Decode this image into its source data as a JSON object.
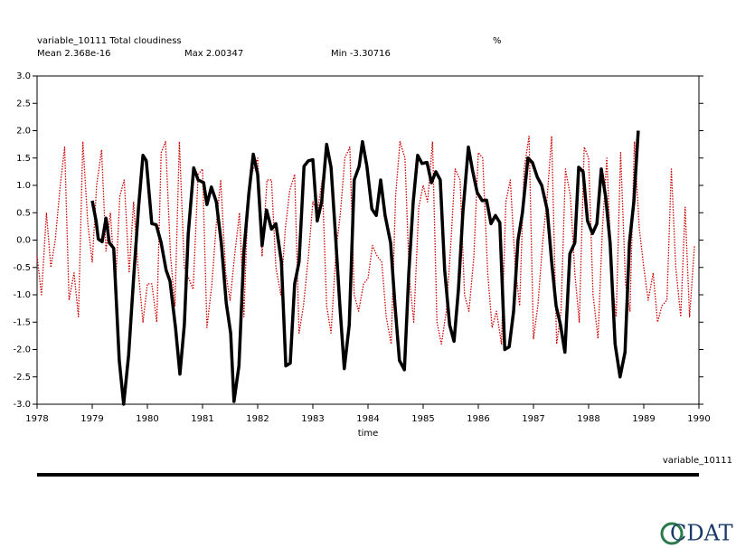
{
  "chart_data": {
    "type": "line",
    "title": "variable_10111 Total cloudiness",
    "units": "%",
    "annotations": [
      "Mean 2.368e-16",
      "Max 2.00347",
      "Min -3.30716"
    ],
    "xlabel": "time",
    "logo": "CDAT",
    "xlim": [
      1978,
      1990
    ],
    "xticks": [
      1978,
      1979,
      1980,
      1981,
      1982,
      1983,
      1984,
      1985,
      1986,
      1987,
      1988,
      1989,
      1990
    ],
    "ylim": [
      -3,
      3
    ],
    "yticks": [
      {
        "value": -3,
        "label": "-3.0"
      },
      {
        "value": -2.5,
        "label": "-2.5"
      },
      {
        "value": -2,
        "label": "-2.0"
      },
      {
        "value": -1.5,
        "label": "-1.5"
      },
      {
        "value": -1,
        "label": "-1.0"
      },
      {
        "value": -0.5,
        "label": "-0.5"
      },
      {
        "value": 0,
        "label": "0.0"
      },
      {
        "value": 0.5,
        "label": "0.5"
      },
      {
        "value": 1,
        "label": "1.0"
      },
      {
        "value": 1.5,
        "label": "1.5"
      },
      {
        "value": 2,
        "label": "2.0"
      },
      {
        "value": 2.5,
        "label": "2.5"
      },
      {
        "value": 3,
        "label": "3.0"
      }
    ],
    "series": [
      {
        "color": "#cc0000",
        "style": "dotted",
        "x": [
          1978.0,
          1978.08,
          1978.17,
          1978.25,
          1978.33,
          1978.42,
          1978.5,
          1978.58,
          1978.67,
          1978.75,
          1978.83,
          1978.92,
          1979.0,
          1979.08,
          1979.17,
          1979.25,
          1979.33,
          1979.42,
          1979.5,
          1979.58,
          1979.67,
          1979.75,
          1979.83,
          1979.92,
          1980.0,
          1980.08,
          1980.17,
          1980.25,
          1980.33,
          1980.42,
          1980.5,
          1980.58,
          1980.67,
          1980.75,
          1980.83,
          1980.92,
          1981.0,
          1981.08,
          1981.17,
          1981.25,
          1981.33,
          1981.42,
          1981.5,
          1981.58,
          1981.67,
          1981.75,
          1981.83,
          1981.92,
          1982.0,
          1982.08,
          1982.17,
          1982.25,
          1982.33,
          1982.42,
          1982.5,
          1982.58,
          1982.67,
          1982.75,
          1982.83,
          1982.92,
          1983.0,
          1983.08,
          1983.17,
          1983.25,
          1983.33,
          1983.42,
          1983.5,
          1983.58,
          1983.67,
          1983.75,
          1983.83,
          1983.92,
          1984.0,
          1984.08,
          1984.17,
          1984.25,
          1984.33,
          1984.42,
          1984.5,
          1984.58,
          1984.67,
          1984.75,
          1984.83,
          1984.92,
          1985.0,
          1985.08,
          1985.17,
          1985.25,
          1985.33,
          1985.42,
          1985.5,
          1985.58,
          1985.67,
          1985.75,
          1985.83,
          1985.92,
          1986.0,
          1986.08,
          1986.17,
          1986.25,
          1986.33,
          1986.42,
          1986.5,
          1986.58,
          1986.67,
          1986.75,
          1986.83,
          1986.92,
          1987.0,
          1987.08,
          1987.17,
          1987.25,
          1987.33,
          1987.42,
          1987.5,
          1987.58,
          1987.67,
          1987.75,
          1987.83,
          1987.92,
          1988.0,
          1988.08,
          1988.17,
          1988.25,
          1988.33,
          1988.42,
          1988.5,
          1988.58,
          1988.67,
          1988.75,
          1988.83,
          1988.92,
          1989.0,
          1989.08,
          1989.17,
          1989.25,
          1989.33,
          1989.42,
          1989.5,
          1989.58,
          1989.67,
          1989.75,
          1989.83,
          1989.92
        ],
        "values": [
          -0.3,
          -1.0,
          0.5,
          -0.5,
          0.0,
          1.0,
          1.7,
          -1.1,
          -0.6,
          -1.4,
          1.8,
          0.3,
          -0.4,
          1.0,
          1.65,
          -0.2,
          0.5,
          -0.9,
          0.8,
          1.1,
          -0.6,
          0.7,
          -0.5,
          -1.5,
          -0.8,
          -0.8,
          -1.5,
          1.6,
          1.8,
          -0.3,
          -1.2,
          1.8,
          -0.5,
          -0.7,
          -0.9,
          1.2,
          1.3,
          -1.6,
          -0.8,
          0.3,
          1.1,
          -0.6,
          -1.1,
          -0.3,
          0.5,
          -1.4,
          0.9,
          1.3,
          1.5,
          -0.3,
          1.1,
          1.1,
          -0.5,
          -1.0,
          0.2,
          0.9,
          1.2,
          -1.7,
          -1.2,
          -0.3,
          0.7,
          0.5,
          1.1,
          -1.2,
          -1.7,
          -0.2,
          0.5,
          1.5,
          1.7,
          -1.0,
          -1.3,
          -0.8,
          -0.7,
          -0.1,
          -0.3,
          -0.4,
          -1.4,
          -1.9,
          0.8,
          1.8,
          1.5,
          -0.7,
          -1.5,
          0.6,
          1.0,
          0.7,
          1.8,
          -1.5,
          -1.9,
          -1.3,
          -0.1,
          1.3,
          1.1,
          -1.0,
          -1.3,
          -0.3,
          1.6,
          1.5,
          -0.6,
          -1.6,
          -1.3,
          -1.9,
          0.7,
          1.1,
          -0.5,
          -1.2,
          1.3,
          1.9,
          -1.8,
          -1.2,
          0.0,
          0.8,
          1.9,
          -1.9,
          -1.3,
          1.3,
          0.8,
          -0.6,
          -1.5,
          1.7,
          1.5,
          -1.0,
          -1.8,
          0.2,
          1.5,
          -0.7,
          -1.4,
          1.6,
          -0.8,
          -1.3,
          1.8,
          0.2,
          -0.5,
          -1.1,
          -0.6,
          -1.5,
          -1.2,
          -1.1,
          1.3,
          -0.5,
          -1.4,
          0.6,
          -1.4,
          -0.1
        ]
      },
      {
        "name": "variable_10111",
        "color": "#000000",
        "style": "solid",
        "x": [
          1979.0,
          1979.07,
          1979.11,
          1979.18,
          1979.25,
          1979.31,
          1979.39,
          1979.49,
          1979.57,
          1979.66,
          1979.75,
          1979.84,
          1979.92,
          1979.98,
          1980.08,
          1980.16,
          1980.25,
          1980.34,
          1980.41,
          1980.51,
          1980.59,
          1980.67,
          1980.74,
          1980.84,
          1980.92,
          1981.02,
          1981.08,
          1981.16,
          1981.25,
          1981.34,
          1981.43,
          1981.51,
          1981.57,
          1981.66,
          1981.75,
          1981.84,
          1981.92,
          1982.0,
          1982.08,
          1982.16,
          1982.25,
          1982.33,
          1982.43,
          1982.51,
          1982.59,
          1982.67,
          1982.75,
          1982.84,
          1982.92,
          1983.0,
          1983.08,
          1983.16,
          1983.25,
          1983.33,
          1983.41,
          1983.49,
          1983.57,
          1983.66,
          1983.75,
          1983.84,
          1983.9,
          1983.98,
          1984.07,
          1984.15,
          1984.23,
          1984.31,
          1984.41,
          1984.49,
          1984.57,
          1984.66,
          1984.74,
          1984.82,
          1984.9,
          1984.98,
          1985.07,
          1985.15,
          1985.23,
          1985.31,
          1985.39,
          1985.48,
          1985.56,
          1985.64,
          1985.72,
          1985.82,
          1985.9,
          1985.98,
          1986.07,
          1986.15,
          1986.23,
          1986.31,
          1986.39,
          1986.48,
          1986.56,
          1986.64,
          1986.72,
          1986.8,
          1986.9,
          1986.98,
          1987.07,
          1987.15,
          1987.25,
          1987.33,
          1987.41,
          1987.49,
          1987.57,
          1987.66,
          1987.75,
          1987.82,
          1987.9,
          1987.98,
          1988.07,
          1988.15,
          1988.23,
          1988.31,
          1988.39,
          1988.48,
          1988.57,
          1988.66,
          1988.74,
          1988.82,
          1988.9
        ],
        "values": [
          0.72,
          0.35,
          0.02,
          -0.03,
          0.4,
          -0.05,
          -0.15,
          -2.2,
          -3.0,
          -2.1,
          -0.7,
          0.6,
          1.55,
          1.45,
          0.3,
          0.28,
          -0.05,
          -0.55,
          -0.75,
          -1.6,
          -2.45,
          -1.55,
          0.1,
          1.32,
          1.1,
          1.05,
          0.65,
          0.97,
          0.7,
          -0.05,
          -1.15,
          -1.7,
          -2.95,
          -2.3,
          -0.2,
          0.85,
          1.57,
          1.2,
          -0.1,
          0.55,
          0.2,
          0.3,
          -0.4,
          -2.3,
          -2.25,
          -0.8,
          -0.4,
          1.35,
          1.45,
          1.47,
          0.35,
          0.7,
          1.75,
          1.33,
          0.1,
          -1.2,
          -2.35,
          -1.55,
          1.1,
          1.35,
          1.8,
          1.35,
          0.57,
          0.45,
          1.1,
          0.45,
          -0.05,
          -1.2,
          -2.2,
          -2.37,
          -0.6,
          0.7,
          1.55,
          1.4,
          1.42,
          1.05,
          1.25,
          1.1,
          -0.55,
          -1.55,
          -1.85,
          -0.9,
          0.5,
          1.7,
          1.25,
          0.87,
          0.72,
          0.73,
          0.3,
          0.45,
          0.32,
          -2.0,
          -1.95,
          -1.3,
          0.0,
          0.5,
          1.5,
          1.42,
          1.15,
          1.0,
          0.55,
          -0.4,
          -1.2,
          -1.55,
          -2.05,
          -0.25,
          -0.05,
          1.33,
          1.25,
          0.35,
          0.12,
          0.3,
          1.3,
          0.78,
          -0.05,
          -1.9,
          -2.5,
          -2.05,
          -0.05,
          0.7,
          2.0
        ]
      }
    ]
  }
}
